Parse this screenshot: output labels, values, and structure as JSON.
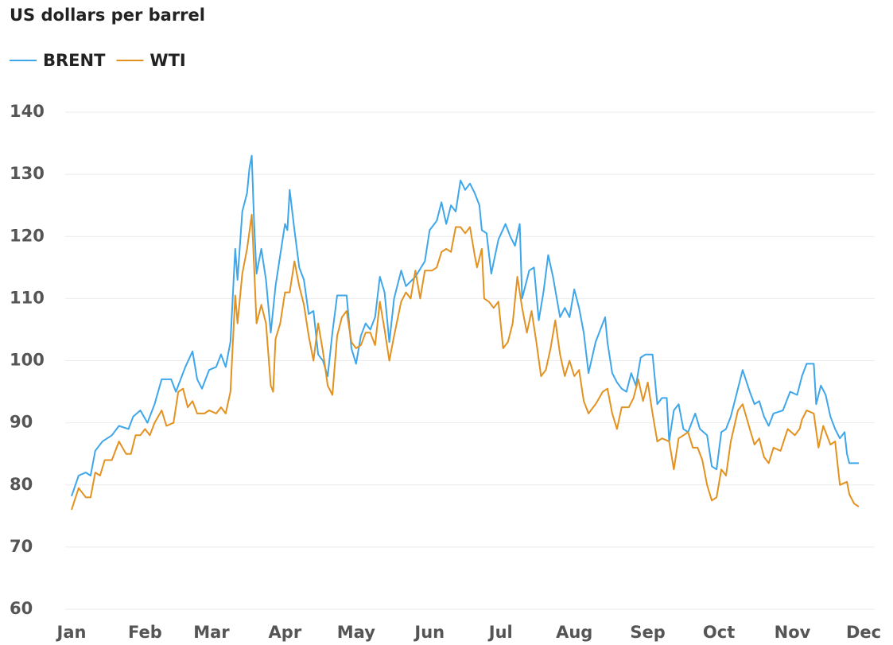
{
  "chart_data": {
    "type": "line",
    "title": "US dollars per barrel",
    "xlim": [
      0,
      334
    ],
    "xticks": [
      {
        "value": 0,
        "label": "Jan"
      },
      {
        "value": 31,
        "label": "Feb"
      },
      {
        "value": 59,
        "label": "Mar"
      },
      {
        "value": 90,
        "label": "Apr"
      },
      {
        "value": 120,
        "label": "May"
      },
      {
        "value": 151,
        "label": "Jun"
      },
      {
        "value": 181,
        "label": "Jul"
      },
      {
        "value": 212,
        "label": "Aug"
      },
      {
        "value": 243,
        "label": "Sep"
      },
      {
        "value": 273,
        "label": "Oct"
      },
      {
        "value": 304,
        "label": "Nov"
      },
      {
        "value": 334,
        "label": "Dec"
      }
    ],
    "ylim": [
      60,
      140
    ],
    "yticks": [
      60,
      70,
      80,
      90,
      100,
      110,
      120,
      130,
      140
    ],
    "grid": true,
    "series": [
      {
        "name": "BRENT",
        "color": "#3ea6ea",
        "x": [
          0,
          3,
          6,
          8,
          10,
          13,
          17,
          20,
          24,
          26,
          29,
          32,
          35,
          38,
          42,
          44,
          48,
          51,
          53,
          55,
          58,
          61,
          63,
          65,
          67,
          69,
          70,
          72,
          74,
          75,
          76,
          77,
          78,
          80,
          82,
          84,
          86,
          88,
          90,
          91,
          92,
          94,
          96,
          98,
          100,
          102,
          104,
          106,
          108,
          110,
          112,
          116,
          118,
          120,
          122,
          124,
          126,
          128,
          130,
          132,
          134,
          136,
          139,
          141,
          145,
          149,
          151,
          154,
          156,
          158,
          160,
          162,
          164,
          166,
          168,
          170,
          172,
          173,
          175,
          177,
          180,
          183,
          185,
          187,
          189,
          190,
          193,
          195,
          197,
          199,
          201,
          203,
          206,
          208,
          210,
          212,
          214,
          216,
          218,
          221,
          223,
          225,
          226,
          228,
          230,
          232,
          234,
          236,
          238,
          240,
          242,
          245,
          247,
          249,
          251,
          252,
          254,
          256,
          258,
          260,
          263,
          265,
          268,
          270,
          272,
          274,
          276,
          278,
          280,
          283,
          286,
          288,
          290,
          292,
          294,
          296,
          300,
          303,
          306,
          308,
          310,
          313,
          314,
          316,
          318,
          320,
          322,
          324,
          326,
          327,
          328,
          332
        ],
        "values": [
          78.2,
          81.5,
          82,
          81.5,
          85.5,
          87,
          88,
          89.5,
          89,
          91,
          92,
          90,
          93,
          97,
          97,
          95,
          99,
          101.5,
          97,
          95.5,
          98.5,
          99,
          101,
          99,
          103,
          118,
          113,
          124,
          127,
          131,
          133,
          122,
          114,
          118,
          113,
          104.5,
          112,
          117,
          122,
          121,
          127.5,
          121,
          115,
          113,
          107.5,
          108,
          101,
          100,
          97.5,
          104.5,
          110.5,
          110.5,
          102,
          99.5,
          104,
          106,
          105,
          107,
          113.5,
          111,
          103,
          110,
          114.5,
          112,
          113.5,
          116,
          121,
          122.5,
          125.5,
          122,
          125,
          124,
          129,
          127.5,
          128.5,
          127,
          125,
          121,
          120.5,
          114,
          119.5,
          122,
          120,
          118.5,
          122,
          110,
          114.5,
          115,
          106.5,
          111,
          117,
          113.5,
          107,
          108.5,
          107,
          111.5,
          108.5,
          104.5,
          98,
          103,
          105,
          107,
          103,
          98,
          96.5,
          95.5,
          95,
          98,
          96,
          100.5,
          101,
          101,
          93,
          94,
          94,
          87,
          92,
          93,
          89,
          88.5,
          91.5,
          89,
          88,
          83,
          82.5,
          88.5,
          89,
          91,
          94,
          98.5,
          95,
          93,
          93.5,
          91,
          89.5,
          91.5,
          92,
          95,
          94.5,
          97.5,
          99.5,
          99.5,
          93,
          96,
          94.5,
          91,
          89,
          87.5,
          88.5,
          85,
          83.5,
          83.5
        ]
      },
      {
        "name": "WTI",
        "color": "#e3911f",
        "x": [
          0,
          3,
          6,
          8,
          10,
          12,
          14,
          17,
          20,
          23,
          25,
          27,
          29,
          31,
          33,
          35,
          38,
          40,
          43,
          45,
          47,
          49,
          51,
          53,
          56,
          58,
          61,
          63,
          65,
          67,
          69,
          70,
          72,
          74,
          76,
          77,
          78,
          80,
          82,
          84,
          85,
          86,
          88,
          90,
          92,
          94,
          96,
          98,
          100,
          102,
          104,
          106,
          108,
          110,
          112,
          114,
          116,
          118,
          120,
          122,
          124,
          126,
          128,
          130,
          132,
          134,
          136,
          139,
          141,
          143,
          145,
          147,
          149,
          152,
          154,
          156,
          158,
          160,
          162,
          164,
          166,
          168,
          170,
          171,
          173,
          174,
          176,
          178,
          180,
          182,
          184,
          186,
          188,
          190,
          192,
          194,
          196,
          198,
          200,
          202,
          204,
          206,
          208,
          210,
          212,
          214,
          216,
          218,
          221,
          224,
          226,
          228,
          230,
          232,
          235,
          237,
          239,
          241,
          243,
          245,
          247,
          249,
          252,
          254,
          256,
          258,
          260,
          262,
          264,
          266,
          268,
          270,
          272,
          274,
          276,
          278,
          281,
          283,
          286,
          288,
          290,
          292,
          294,
          296,
          299,
          302,
          305,
          307,
          308,
          310,
          313,
          315,
          317,
          320,
          322,
          324,
          327,
          328,
          330,
          332
        ],
        "values": [
          76,
          79.5,
          78,
          78,
          82,
          81.5,
          84,
          84,
          87,
          85,
          85,
          88,
          88,
          89,
          88,
          90,
          92,
          89.5,
          90,
          95,
          95.5,
          92.5,
          93.5,
          91.5,
          91.5,
          92,
          91.5,
          92.5,
          91.5,
          95,
          110.5,
          106,
          114,
          118,
          123.5,
          115,
          106,
          109,
          106,
          96,
          95,
          103.5,
          106,
          111,
          111,
          116,
          112,
          109,
          104,
          100,
          106,
          101.5,
          96,
          94.5,
          104,
          107,
          108,
          103,
          102,
          102.5,
          104.5,
          104.5,
          102.5,
          109.5,
          105,
          100,
          104,
          109.5,
          111,
          110,
          114.5,
          110,
          114.5,
          114.5,
          115,
          117.5,
          118,
          117.5,
          121.5,
          121.5,
          120.5,
          121.5,
          117,
          115,
          118,
          110,
          109.5,
          108.5,
          109.5,
          102,
          103,
          106,
          113.5,
          108.5,
          104.5,
          108,
          103,
          97.5,
          98.5,
          102,
          106.5,
          101,
          97.5,
          100,
          97.5,
          98.5,
          93.5,
          91.5,
          93,
          95,
          95.5,
          91.5,
          89,
          92.5,
          92.5,
          94,
          97,
          93.5,
          96.5,
          91.5,
          87,
          87.5,
          87,
          82.5,
          87.5,
          88,
          88.5,
          86,
          86,
          84,
          80,
          77.5,
          78,
          82.5,
          81.5,
          87,
          92,
          93,
          89,
          86.5,
          87.5,
          84.5,
          83.5,
          86,
          85.5,
          89,
          88,
          89,
          90.5,
          92,
          91.5,
          86,
          89.5,
          86.5,
          87,
          80,
          80.5,
          78.5,
          77,
          76.5
        ]
      }
    ]
  }
}
